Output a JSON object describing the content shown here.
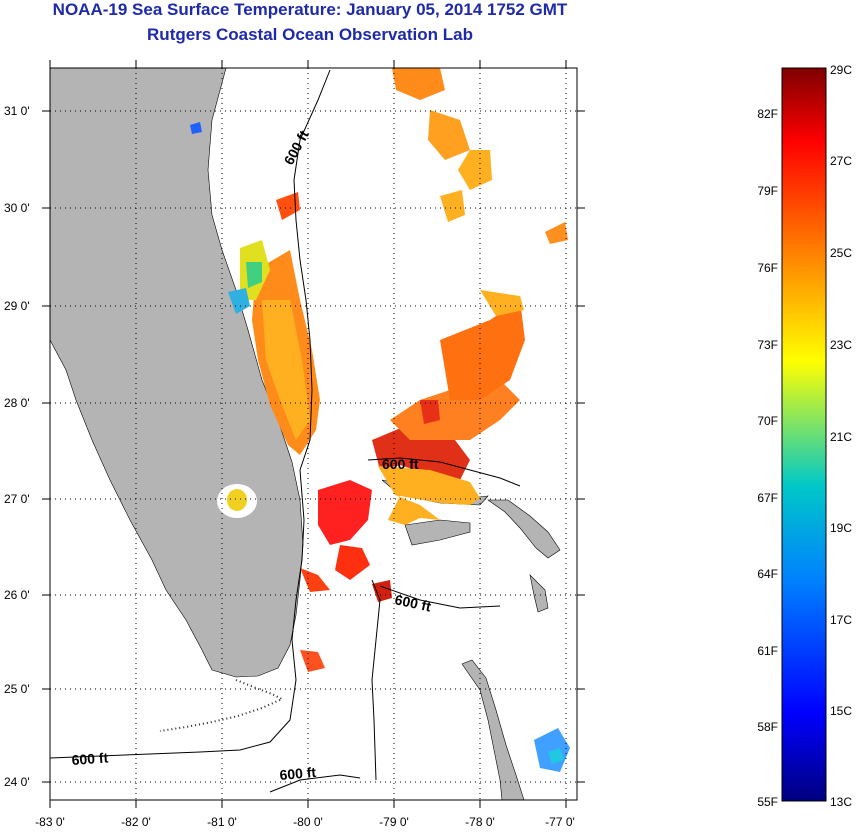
{
  "title": "NOAA-19 Sea Surface Temperature:  January 05, 2014 1752 GMT",
  "subtitle": "Rutgers Coastal Ocean Observation Lab",
  "map": {
    "lon_ticks": [
      "-83 0'",
      "-82 0'",
      "-81 0'",
      "-80 0'",
      "-79 0'",
      "-78 0'",
      "-77 0'"
    ],
    "lat_ticks": [
      "31 0'",
      "30 0'",
      "29 0'",
      "28 0'",
      "27 0'",
      "26 0'",
      "25 0'",
      "24 0'"
    ],
    "contour_labels": [
      "600 ft",
      "600 ft",
      "600 ft",
      "600 ft",
      "600 ft"
    ]
  },
  "colorbar": {
    "fahrenheit_labels": [
      "82F",
      "79F",
      "76F",
      "73F",
      "70F",
      "67F",
      "64F",
      "61F",
      "58F",
      "55F"
    ],
    "celsius_labels": [
      "29C",
      "27C",
      "25C",
      "23C",
      "21C",
      "19C",
      "17C",
      "15C",
      "13C"
    ],
    "colors": [
      "#7f0000",
      "#ff0000",
      "#ff7f00",
      "#ffff00",
      "#00c8c8",
      "#0080ff",
      "#0000ff",
      "#00007f"
    ]
  },
  "colors": {
    "land": "#b4b4b4",
    "title": "#1f2aa8"
  }
}
